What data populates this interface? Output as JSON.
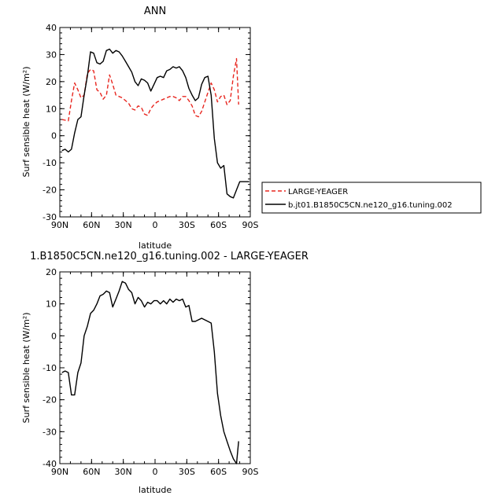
{
  "chart_data": [
    {
      "type": "line",
      "title": "ANN",
      "xlabel": "latitude",
      "ylabel": "Surf sensible heat (W/m²)",
      "x_ticks": [
        "90N",
        "60N",
        "30N",
        "0",
        "30S",
        "60S",
        "90S"
      ],
      "y_ticks": [
        "-30",
        "-20",
        "-10",
        "0",
        "10",
        "20",
        "30",
        "40"
      ],
      "xlim": [
        -90,
        90
      ],
      "ylim": [
        -30,
        40
      ],
      "legend_position": "right",
      "series": [
        {
          "name": "LARGE-YEAGER",
          "color": "#e8261f",
          "dash": "dashed",
          "x": [
            -88,
            -82,
            -79,
            -76,
            -73,
            -70,
            -67,
            -64,
            -61,
            -58,
            -55,
            -52,
            -49,
            -46,
            -43,
            -40,
            -37,
            -34,
            -31,
            -28,
            -25,
            -22,
            -19,
            -16,
            -13,
            -10,
            -7,
            -4,
            -1,
            2,
            5,
            8,
            11,
            14,
            17,
            20,
            23,
            26,
            29,
            32,
            35,
            38,
            41,
            44,
            47,
            50,
            53,
            56,
            59,
            62,
            65,
            68,
            71,
            74,
            77,
            79
          ],
          "y": [
            6,
            5.5,
            13,
            19.5,
            17,
            14,
            15,
            23,
            24.5,
            24,
            17,
            16,
            13.5,
            15,
            22.5,
            19,
            15,
            14.5,
            14,
            13,
            12,
            10,
            9.5,
            11,
            10.5,
            8,
            7.5,
            10,
            11.5,
            12.5,
            13,
            13.5,
            14,
            14.5,
            14.5,
            14,
            13,
            14.5,
            14.5,
            13,
            11,
            7.5,
            7,
            9,
            12.5,
            16,
            19.5,
            17,
            12.5,
            14.5,
            15,
            11.5,
            13,
            22,
            28.5,
            11.5
          ]
        },
        {
          "name": "b.jt01.B1850C5CN.ne120_g16.tuning.002",
          "color": "#000000",
          "dash": "solid",
          "x": [
            -88,
            -85,
            -82,
            -79,
            -76,
            -73,
            -70,
            -67,
            -64,
            -61,
            -58,
            -55,
            -52,
            -49,
            -46,
            -43,
            -40,
            -37,
            -34,
            -31,
            -28,
            -25,
            -22,
            -19,
            -16,
            -13,
            -10,
            -7,
            -4,
            -1,
            2,
            5,
            8,
            11,
            14,
            17,
            20,
            23,
            26,
            29,
            32,
            35,
            38,
            41,
            44,
            47,
            50,
            53,
            56,
            59,
            62,
            65,
            68,
            71,
            74,
            77,
            80,
            83,
            86,
            89
          ],
          "y": [
            -5.5,
            -5,
            -6,
            -5,
            1,
            6,
            7,
            15,
            22,
            31,
            30.5,
            27,
            26.5,
            27.5,
            31.5,
            32,
            30.5,
            31.5,
            31,
            29.5,
            27.5,
            25.5,
            23.5,
            20,
            18.5,
            21,
            20.5,
            19.5,
            16.5,
            19,
            21.5,
            22,
            21.5,
            24,
            24.5,
            25.5,
            25,
            25.5,
            24,
            21.5,
            17.5,
            15,
            13,
            14,
            19,
            21.5,
            22,
            15,
            -1,
            -10,
            -12,
            -11,
            -21.5,
            -22.5,
            -23,
            -20,
            -17,
            -17,
            -17,
            -17
          ]
        }
      ]
    },
    {
      "type": "line",
      "title": "1.B1850C5CN.ne120_g16.tuning.002 - LARGE-YEAGER",
      "xlabel": "latitude",
      "ylabel": "Surf sensible heat (W/m²)",
      "x_ticks": [
        "90N",
        "60N",
        "30N",
        "0",
        "30S",
        "60S",
        "90S"
      ],
      "y_ticks": [
        "-40",
        "-30",
        "-20",
        "-10",
        "0",
        "10",
        "20"
      ],
      "xlim": [
        -90,
        90
      ],
      "ylim": [
        -40,
        20
      ],
      "series": [
        {
          "name": "",
          "color": "#000000",
          "dash": "solid",
          "x": [
            -88,
            -85,
            -82,
            -79,
            -76,
            -73,
            -70,
            -67,
            -64,
            -61,
            -58,
            -55,
            -52,
            -49,
            -46,
            -43,
            -40,
            -37,
            -34,
            -31,
            -28,
            -25,
            -22,
            -19,
            -16,
            -13,
            -10,
            -7,
            -4,
            -1,
            2,
            5,
            8,
            11,
            14,
            17,
            20,
            23,
            26,
            29,
            32,
            35,
            38,
            41,
            44,
            47,
            50,
            53,
            56,
            59,
            62,
            65,
            68,
            71,
            74,
            77,
            79
          ],
          "y": [
            -11.5,
            -11,
            -11.5,
            -18.5,
            -18.5,
            -11.5,
            -8.5,
            0,
            3,
            7,
            8,
            10,
            12.5,
            13,
            14,
            13.5,
            9,
            11.5,
            14,
            17,
            16.5,
            14.5,
            13.5,
            10,
            12,
            11,
            9,
            10.5,
            10,
            11,
            11,
            10,
            11,
            10,
            11.5,
            10.5,
            11.5,
            11,
            11.5,
            9,
            9.5,
            4.5,
            4.5,
            5,
            5.5,
            5,
            4.5,
            4,
            -5,
            -18,
            -25,
            -30,
            -33,
            -36,
            -38.5,
            -40,
            -33
          ]
        }
      ]
    }
  ]
}
